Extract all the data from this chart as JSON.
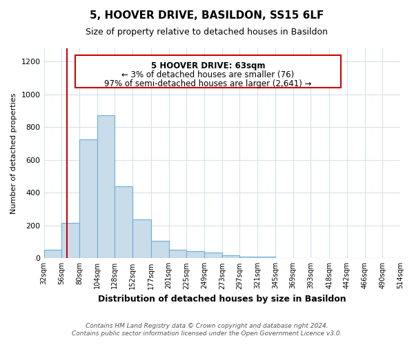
{
  "title": "5, HOOVER DRIVE, BASILDON, SS15 6LF",
  "subtitle": "Size of property relative to detached houses in Basildon",
  "xlabel": "Distribution of detached houses by size in Basildon",
  "ylabel": "Number of detached properties",
  "footnote1": "Contains HM Land Registry data © Crown copyright and database right 2024.",
  "footnote2": "Contains public sector information licensed under the Open Government Licence v3.0.",
  "bar_left_edges": [
    32,
    56,
    80,
    104,
    128,
    152,
    177,
    201,
    225,
    249,
    273,
    297,
    321,
    345,
    369,
    393,
    418,
    442,
    466,
    490
  ],
  "bar_heights": [
    50,
    215,
    725,
    870,
    440,
    235,
    105,
    50,
    45,
    35,
    20,
    10,
    10,
    0,
    0,
    0,
    0,
    0,
    0,
    0
  ],
  "bar_widths": [
    24,
    24,
    24,
    24,
    24,
    25,
    24,
    24,
    24,
    24,
    24,
    24,
    24,
    24,
    24,
    25,
    24,
    24,
    24,
    24
  ],
  "bar_color": "#c9dcea",
  "bar_edgecolor": "#6aaed6",
  "property_line_x": 63,
  "property_line_color": "#cc0000",
  "annotation_text1": "5 HOOVER DRIVE: 63sqm",
  "annotation_text2": "← 3% of detached houses are smaller (76)",
  "annotation_text3": "97% of semi-detached houses are larger (2,641) →",
  "annotation_box_color": "#cc0000",
  "annotation_fill": "#ffffff",
  "ylim": [
    0,
    1280
  ],
  "xlim": [
    32,
    514
  ],
  "xtick_labels": [
    "32sqm",
    "56sqm",
    "80sqm",
    "104sqm",
    "128sqm",
    "152sqm",
    "177sqm",
    "201sqm",
    "225sqm",
    "249sqm",
    "273sqm",
    "297sqm",
    "321sqm",
    "345sqm",
    "369sqm",
    "393sqm",
    "418sqm",
    "442sqm",
    "466sqm",
    "490sqm",
    "514sqm"
  ],
  "xtick_positions": [
    32,
    56,
    80,
    104,
    128,
    152,
    177,
    201,
    225,
    249,
    273,
    297,
    321,
    345,
    369,
    393,
    418,
    442,
    466,
    490,
    514
  ],
  "ytick_positions": [
    0,
    200,
    400,
    600,
    800,
    1000,
    1200
  ],
  "background_color": "#ffffff",
  "grid_color": "#d5e0eb"
}
